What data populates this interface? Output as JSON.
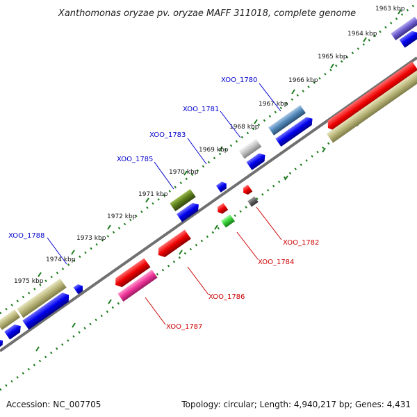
{
  "title": "Xanthomonas oryzae pv. oryzae MAFF 311018, complete genome",
  "footer": {
    "accession": "Accession: NC_007705",
    "summary": "Topology: circular; Length: 4,940,217 bp; Genes: 4,431"
  },
  "scale_labels": [
    "1963 kbp",
    "1964 kbp",
    "1965 kbp",
    "1966 kbp",
    "1967 kbp",
    "1968 kbp",
    "1969 kbp",
    "1970 kbp",
    "1971 kbp",
    "1972 kbp",
    "1973 kbp",
    "1974 kbp",
    "1975 kbp"
  ],
  "gene_labels_top": [
    "XOO_1780",
    "XOO_1781",
    "XOO_1783",
    "XOO_1785",
    "XOO_1788"
  ],
  "gene_labels_bottom": [
    "XOO_1782",
    "XOO_1784",
    "XOO_1786",
    "XOO_1787"
  ],
  "colors": {
    "backbone": "#707070",
    "ticks": "#1a7a1a",
    "forward": "#0000ee",
    "olive": "#b8b478",
    "red": "#ee0000",
    "pink": "#ee3399",
    "steelblue": "#4f86b8",
    "slate": "#6a5acd",
    "darkolive": "#5a7a1a",
    "green": "#33cc33",
    "grey": "#606060",
    "silver": "#c0c0c0"
  }
}
